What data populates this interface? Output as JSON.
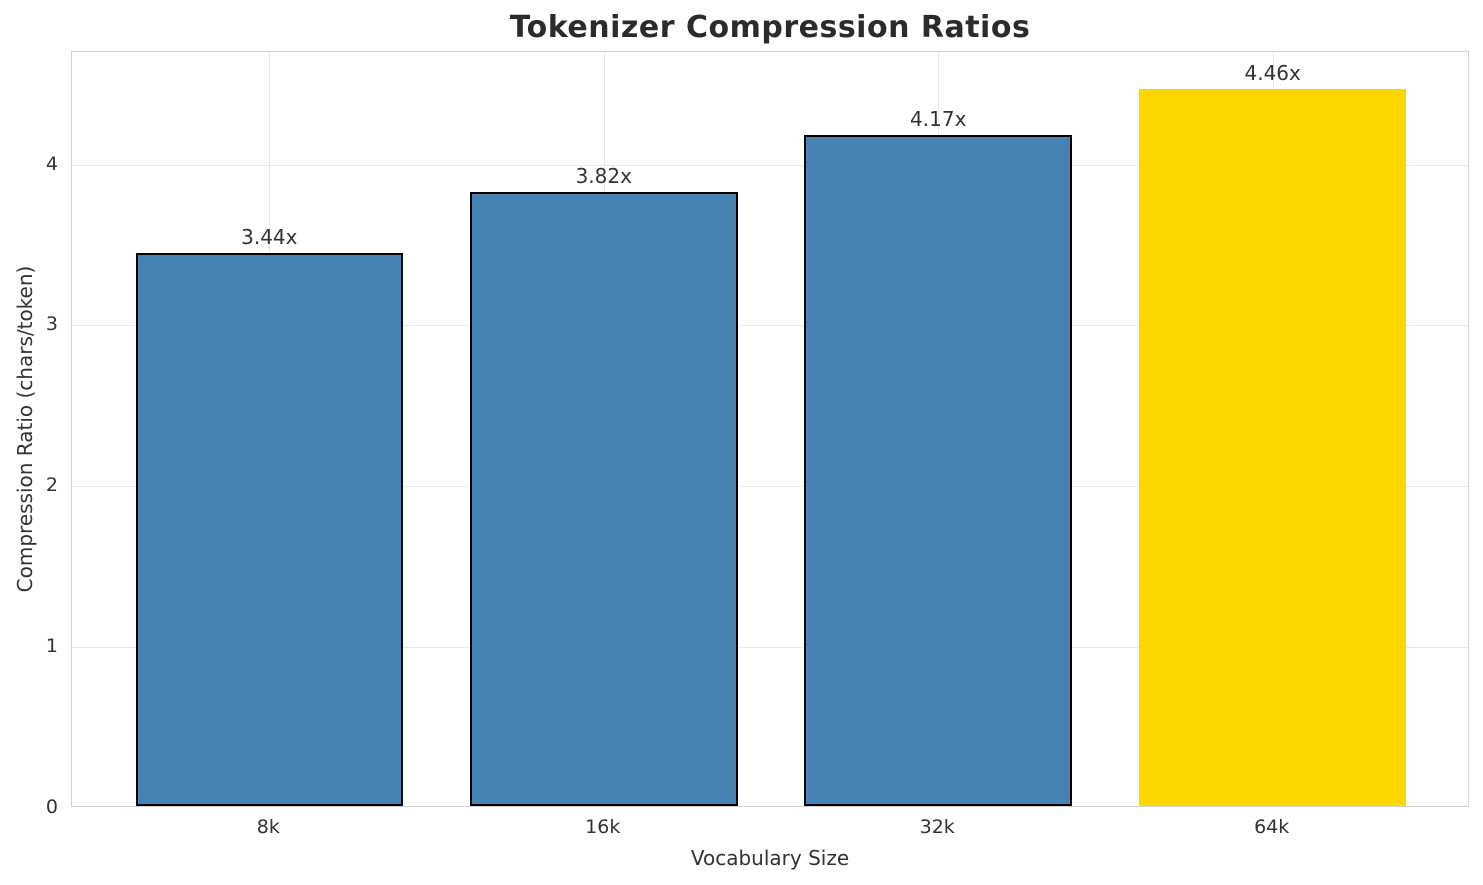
{
  "chart_data": {
    "type": "bar",
    "title": "Tokenizer Compression Ratios",
    "xlabel": "Vocabulary Size",
    "ylabel": "Compression Ratio (chars/token)",
    "categories": [
      "8k",
      "16k",
      "32k",
      "64k"
    ],
    "values": [
      3.44,
      3.82,
      4.17,
      4.46
    ],
    "value_labels": [
      "3.44x",
      "3.82x",
      "4.17x",
      "4.46x"
    ],
    "bar_colors": [
      "#4682B4",
      "#4682B4",
      "#4682B4",
      "#FFD700"
    ],
    "bar_edge_colors": [
      "#000000",
      "#000000",
      "#000000",
      "none"
    ],
    "yticks": [
      "0",
      "1",
      "2",
      "3",
      "4"
    ],
    "ytick_values": [
      0,
      1,
      2,
      3,
      4
    ],
    "ylim": [
      0,
      4.7
    ],
    "bar_width_fraction": 0.8,
    "grid": "both",
    "legend": "none",
    "colors": {
      "bar_default": "#4682B4",
      "bar_highlight": "#FFD700",
      "bar_edge": "#000000",
      "grid": "#e9e9e9",
      "spine": "#d2d2d2",
      "text": "#333333",
      "title": "#2b2b2b",
      "background": "#ffffff"
    }
  }
}
